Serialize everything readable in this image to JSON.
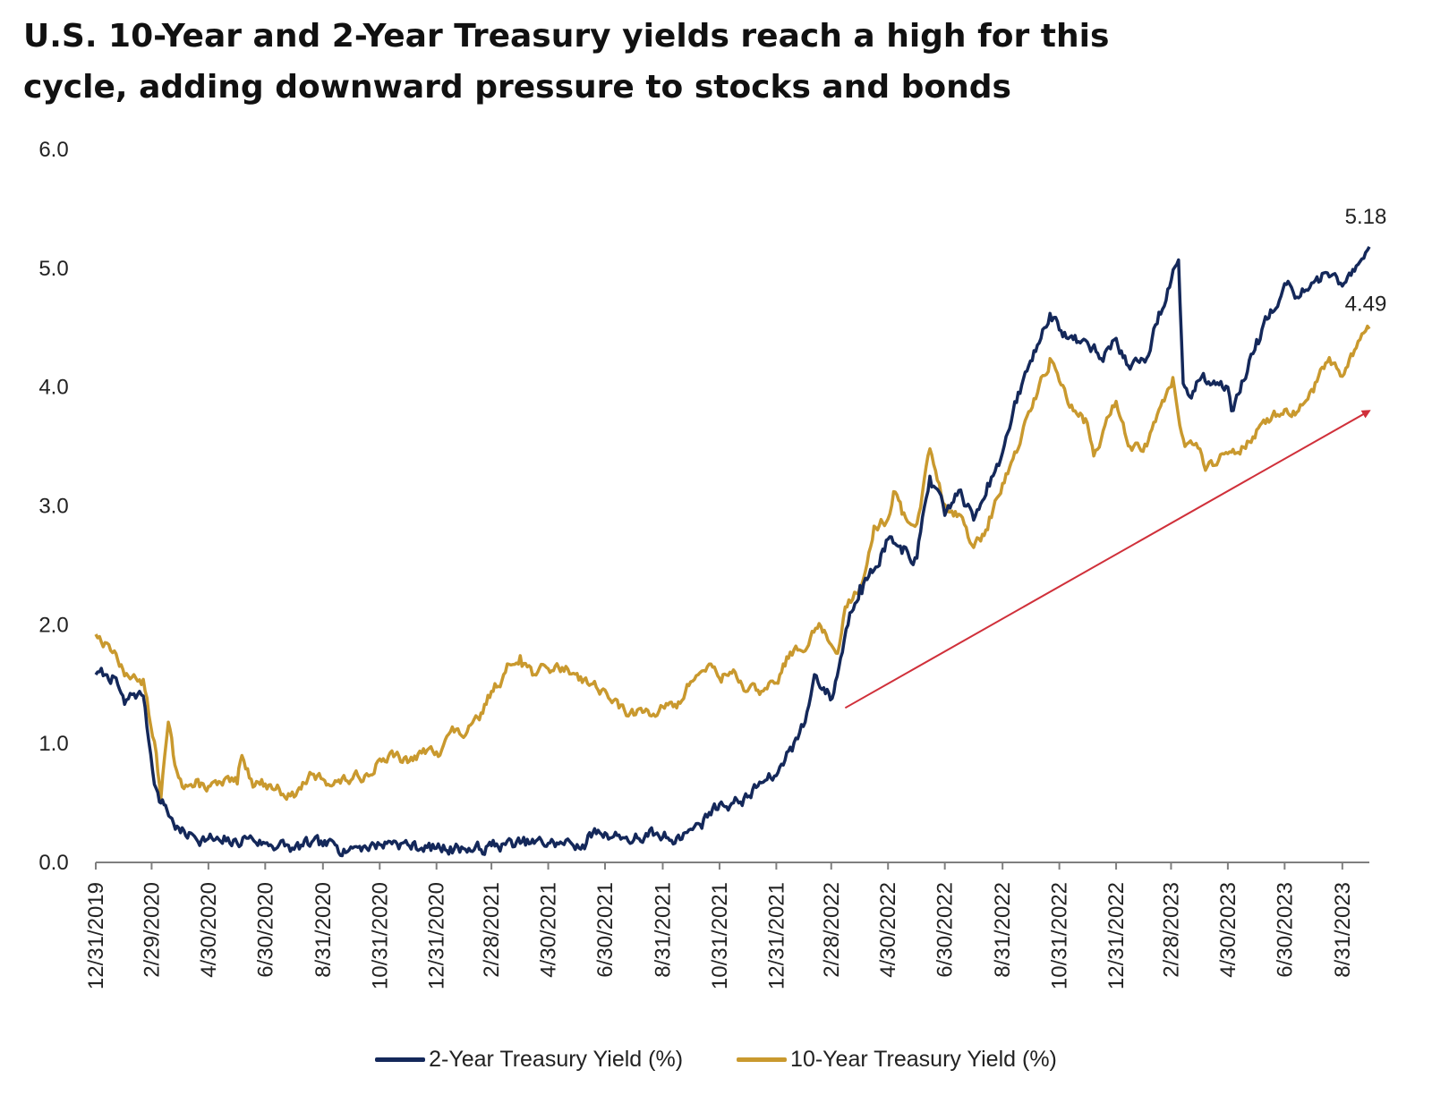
{
  "title_lines": [
    "U.S. 10-Year and 2-Year Treasury yields reach a high for this",
    "cycle, adding downward pressure to stocks and bonds"
  ],
  "chart_data": {
    "type": "line",
    "title": "U.S. 10-Year and 2-Year Treasury yields reach a high for this cycle, adding downward pressure to stocks and bonds",
    "xlabel": "",
    "ylabel": "",
    "ylim": [
      0,
      6
    ],
    "xlim": [
      "2019-12-31",
      "2023-09-29"
    ],
    "y_ticks": [
      "0.0",
      "1.0",
      "2.0",
      "3.0",
      "4.0",
      "5.0",
      "6.0"
    ],
    "x_ticks": [
      {
        "date": "2019-12-31",
        "label": "12/31/2019"
      },
      {
        "date": "2020-02-29",
        "label": "2/29/2020"
      },
      {
        "date": "2020-04-30",
        "label": "4/30/2020"
      },
      {
        "date": "2020-06-30",
        "label": "6/30/2020"
      },
      {
        "date": "2020-08-31",
        "label": "8/31/2020"
      },
      {
        "date": "2020-10-31",
        "label": "10/31/2020"
      },
      {
        "date": "2020-12-31",
        "label": "12/31/2020"
      },
      {
        "date": "2021-02-28",
        "label": "2/28/2021"
      },
      {
        "date": "2021-04-30",
        "label": "4/30/2021"
      },
      {
        "date": "2021-06-30",
        "label": "6/30/2021"
      },
      {
        "date": "2021-08-31",
        "label": "8/31/2021"
      },
      {
        "date": "2021-10-31",
        "label": "10/31/2021"
      },
      {
        "date": "2021-12-31",
        "label": "12/31/2021"
      },
      {
        "date": "2022-02-28",
        "label": "2/28/2022"
      },
      {
        "date": "2022-04-30",
        "label": "4/30/2022"
      },
      {
        "date": "2022-06-30",
        "label": "6/30/2022"
      },
      {
        "date": "2022-08-31",
        "label": "8/31/2022"
      },
      {
        "date": "2022-10-31",
        "label": "10/31/2022"
      },
      {
        "date": "2022-12-31",
        "label": "12/31/2022"
      },
      {
        "date": "2023-02-28",
        "label": "2/28/2023"
      },
      {
        "date": "2023-04-30",
        "label": "4/30/2023"
      },
      {
        "date": "2023-06-30",
        "label": "6/30/2023"
      },
      {
        "date": "2023-08-31",
        "label": "8/31/2023"
      }
    ],
    "grid": false,
    "legend_position": "bottom-center",
    "series": [
      {
        "name": "2-Year Treasury Yield (%)",
        "color": "#14285a",
        "points": [
          [
            "2019-12-31",
            1.58
          ],
          [
            "2020-01-10",
            1.58
          ],
          [
            "2020-01-20",
            1.56
          ],
          [
            "2020-01-31",
            1.33
          ],
          [
            "2020-02-10",
            1.42
          ],
          [
            "2020-02-20",
            1.4
          ],
          [
            "2020-02-28",
            0.91
          ],
          [
            "2020-03-05",
            0.62
          ],
          [
            "2020-03-10",
            0.5
          ],
          [
            "2020-03-15",
            0.48
          ],
          [
            "2020-03-20",
            0.38
          ],
          [
            "2020-03-31",
            0.25
          ],
          [
            "2020-04-15",
            0.22
          ],
          [
            "2020-04-30",
            0.2
          ],
          [
            "2020-05-15",
            0.16
          ],
          [
            "2020-05-31",
            0.16
          ],
          [
            "2020-06-08",
            0.22
          ],
          [
            "2020-06-30",
            0.16
          ],
          [
            "2020-07-15",
            0.15
          ],
          [
            "2020-07-31",
            0.11
          ],
          [
            "2020-08-15",
            0.15
          ],
          [
            "2020-08-31",
            0.14
          ],
          [
            "2020-09-15",
            0.14
          ],
          [
            "2020-09-30",
            0.13
          ],
          [
            "2020-10-15",
            0.14
          ],
          [
            "2020-10-31",
            0.15
          ],
          [
            "2020-11-15",
            0.18
          ],
          [
            "2020-11-30",
            0.15
          ],
          [
            "2020-12-15",
            0.12
          ],
          [
            "2020-12-31",
            0.12
          ],
          [
            "2021-01-15",
            0.13
          ],
          [
            "2021-01-31",
            0.11
          ],
          [
            "2021-02-15",
            0.11
          ],
          [
            "2021-02-28",
            0.14
          ],
          [
            "2021-03-15",
            0.15
          ],
          [
            "2021-03-31",
            0.16
          ],
          [
            "2021-04-15",
            0.16
          ],
          [
            "2021-04-30",
            0.16
          ],
          [
            "2021-05-15",
            0.16
          ],
          [
            "2021-05-31",
            0.15
          ],
          [
            "2021-06-10",
            0.16
          ],
          [
            "2021-06-17",
            0.25
          ],
          [
            "2021-06-30",
            0.25
          ],
          [
            "2021-07-15",
            0.23
          ],
          [
            "2021-07-31",
            0.19
          ],
          [
            "2021-08-15",
            0.22
          ],
          [
            "2021-08-31",
            0.21
          ],
          [
            "2021-09-15",
            0.21
          ],
          [
            "2021-09-30",
            0.28
          ],
          [
            "2021-10-10",
            0.32
          ],
          [
            "2021-10-20",
            0.42
          ],
          [
            "2021-10-31",
            0.49
          ],
          [
            "2021-11-15",
            0.5
          ],
          [
            "2021-11-30",
            0.55
          ],
          [
            "2021-12-15",
            0.67
          ],
          [
            "2021-12-31",
            0.73
          ],
          [
            "2022-01-15",
            0.97
          ],
          [
            "2022-01-31",
            1.18
          ],
          [
            "2022-02-10",
            1.58
          ],
          [
            "2022-02-20",
            1.47
          ],
          [
            "2022-03-01",
            1.38
          ],
          [
            "2022-03-10",
            1.72
          ],
          [
            "2022-03-20",
            2.1
          ],
          [
            "2022-03-31",
            2.33
          ],
          [
            "2022-04-15",
            2.46
          ],
          [
            "2022-04-30",
            2.72
          ],
          [
            "2022-05-15",
            2.6
          ],
          [
            "2022-05-31",
            2.56
          ],
          [
            "2022-06-14",
            3.25
          ],
          [
            "2022-06-30",
            2.92
          ],
          [
            "2022-07-15",
            3.13
          ],
          [
            "2022-07-31",
            2.88
          ],
          [
            "2022-08-15",
            3.19
          ],
          [
            "2022-08-31",
            3.45
          ],
          [
            "2022-09-15",
            3.87
          ],
          [
            "2022-09-30",
            4.22
          ],
          [
            "2022-10-15",
            4.5
          ],
          [
            "2022-10-21",
            4.62
          ],
          [
            "2022-10-31",
            4.48
          ],
          [
            "2022-11-15",
            4.4
          ],
          [
            "2022-11-30",
            4.38
          ],
          [
            "2022-12-15",
            4.24
          ],
          [
            "2022-12-31",
            4.41
          ],
          [
            "2023-01-15",
            4.15
          ],
          [
            "2023-01-31",
            4.21
          ],
          [
            "2023-02-15",
            4.63
          ],
          [
            "2023-03-08",
            5.07
          ],
          [
            "2023-03-13",
            4.03
          ],
          [
            "2023-03-20",
            3.92
          ],
          [
            "2023-03-31",
            4.06
          ],
          [
            "2023-04-15",
            4.05
          ],
          [
            "2023-04-30",
            4.0
          ],
          [
            "2023-05-04",
            3.8
          ],
          [
            "2023-05-15",
            4.05
          ],
          [
            "2023-05-31",
            4.4
          ],
          [
            "2023-06-15",
            4.65
          ],
          [
            "2023-06-30",
            4.87
          ],
          [
            "2023-07-15",
            4.75
          ],
          [
            "2023-07-31",
            4.88
          ],
          [
            "2023-08-15",
            4.96
          ],
          [
            "2023-08-31",
            4.85
          ],
          [
            "2023-09-15",
            5.02
          ],
          [
            "2023-09-29",
            5.18
          ]
        ]
      },
      {
        "name": "10-Year Treasury Yield (%)",
        "color": "#c9992e",
        "points": [
          [
            "2019-12-31",
            1.92
          ],
          [
            "2020-01-10",
            1.85
          ],
          [
            "2020-01-20",
            1.78
          ],
          [
            "2020-01-31",
            1.57
          ],
          [
            "2020-02-10",
            1.58
          ],
          [
            "2020-02-20",
            1.54
          ],
          [
            "2020-02-28",
            1.15
          ],
          [
            "2020-03-05",
            0.92
          ],
          [
            "2020-03-10",
            0.54
          ],
          [
            "2020-03-18",
            1.18
          ],
          [
            "2020-03-25",
            0.82
          ],
          [
            "2020-03-31",
            0.7
          ],
          [
            "2020-04-15",
            0.64
          ],
          [
            "2020-04-30",
            0.64
          ],
          [
            "2020-05-15",
            0.65
          ],
          [
            "2020-05-31",
            0.66
          ],
          [
            "2020-06-05",
            0.9
          ],
          [
            "2020-06-15",
            0.7
          ],
          [
            "2020-06-30",
            0.66
          ],
          [
            "2020-07-15",
            0.62
          ],
          [
            "2020-07-31",
            0.55
          ],
          [
            "2020-08-15",
            0.71
          ],
          [
            "2020-08-31",
            0.7
          ],
          [
            "2020-09-15",
            0.68
          ],
          [
            "2020-09-30",
            0.69
          ],
          [
            "2020-10-15",
            0.73
          ],
          [
            "2020-10-31",
            0.87
          ],
          [
            "2020-11-15",
            0.89
          ],
          [
            "2020-11-30",
            0.84
          ],
          [
            "2020-12-15",
            0.92
          ],
          [
            "2020-12-31",
            0.93
          ],
          [
            "2021-01-15",
            1.1
          ],
          [
            "2021-01-31",
            1.07
          ],
          [
            "2021-02-15",
            1.2
          ],
          [
            "2021-02-28",
            1.44
          ],
          [
            "2021-03-15",
            1.6
          ],
          [
            "2021-03-31",
            1.74
          ],
          [
            "2021-04-15",
            1.58
          ],
          [
            "2021-04-30",
            1.63
          ],
          [
            "2021-05-15",
            1.64
          ],
          [
            "2021-05-31",
            1.59
          ],
          [
            "2021-06-15",
            1.5
          ],
          [
            "2021-06-30",
            1.45
          ],
          [
            "2021-07-15",
            1.3
          ],
          [
            "2021-07-31",
            1.24
          ],
          [
            "2021-08-15",
            1.28
          ],
          [
            "2021-08-31",
            1.31
          ],
          [
            "2021-09-15",
            1.3
          ],
          [
            "2021-09-30",
            1.52
          ],
          [
            "2021-10-20",
            1.67
          ],
          [
            "2021-10-31",
            1.55
          ],
          [
            "2021-11-15",
            1.62
          ],
          [
            "2021-11-30",
            1.44
          ],
          [
            "2021-12-15",
            1.44
          ],
          [
            "2021-12-31",
            1.51
          ],
          [
            "2022-01-15",
            1.77
          ],
          [
            "2022-01-31",
            1.78
          ],
          [
            "2022-02-15",
            2.01
          ],
          [
            "2022-02-28",
            1.83
          ],
          [
            "2022-03-07",
            1.76
          ],
          [
            "2022-03-15",
            2.15
          ],
          [
            "2022-03-31",
            2.32
          ],
          [
            "2022-04-15",
            2.83
          ],
          [
            "2022-04-30",
            2.89
          ],
          [
            "2022-05-06",
            3.12
          ],
          [
            "2022-05-15",
            2.93
          ],
          [
            "2022-05-31",
            2.85
          ],
          [
            "2022-06-14",
            3.48
          ],
          [
            "2022-06-30",
            3.01
          ],
          [
            "2022-07-15",
            2.93
          ],
          [
            "2022-07-31",
            2.65
          ],
          [
            "2022-08-15",
            2.8
          ],
          [
            "2022-08-31",
            3.19
          ],
          [
            "2022-09-15",
            3.45
          ],
          [
            "2022-09-30",
            3.8
          ],
          [
            "2022-10-21",
            4.24
          ],
          [
            "2022-10-31",
            4.05
          ],
          [
            "2022-11-15",
            3.8
          ],
          [
            "2022-11-30",
            3.7
          ],
          [
            "2022-12-07",
            3.42
          ],
          [
            "2022-12-31",
            3.88
          ],
          [
            "2023-01-15",
            3.5
          ],
          [
            "2023-01-31",
            3.52
          ],
          [
            "2023-02-15",
            3.81
          ],
          [
            "2023-03-02",
            4.08
          ],
          [
            "2023-03-15",
            3.5
          ],
          [
            "2023-03-31",
            3.48
          ],
          [
            "2023-04-06",
            3.3
          ],
          [
            "2023-04-30",
            3.44
          ],
          [
            "2023-05-15",
            3.5
          ],
          [
            "2023-05-31",
            3.64
          ],
          [
            "2023-06-15",
            3.72
          ],
          [
            "2023-06-30",
            3.81
          ],
          [
            "2023-07-15",
            3.8
          ],
          [
            "2023-07-31",
            3.96
          ],
          [
            "2023-08-15",
            4.21
          ],
          [
            "2023-08-31",
            4.09
          ],
          [
            "2023-09-15",
            4.33
          ],
          [
            "2023-09-29",
            4.49
          ]
        ]
      }
    ],
    "annotations": [
      {
        "text": "5.18",
        "series": 0,
        "date": "2023-09-29",
        "value": 5.18
      },
      {
        "text": "4.49",
        "series": 1,
        "date": "2023-09-29",
        "value": 4.49
      }
    ],
    "trend_arrow": {
      "from": {
        "date": "2022-03-15",
        "value": 1.3
      },
      "to": {
        "date": "2023-09-29",
        "value": 3.8
      },
      "color": "#d0303a"
    },
    "colors": {
      "axis": "#7f7f7f",
      "text": "#222222"
    }
  }
}
